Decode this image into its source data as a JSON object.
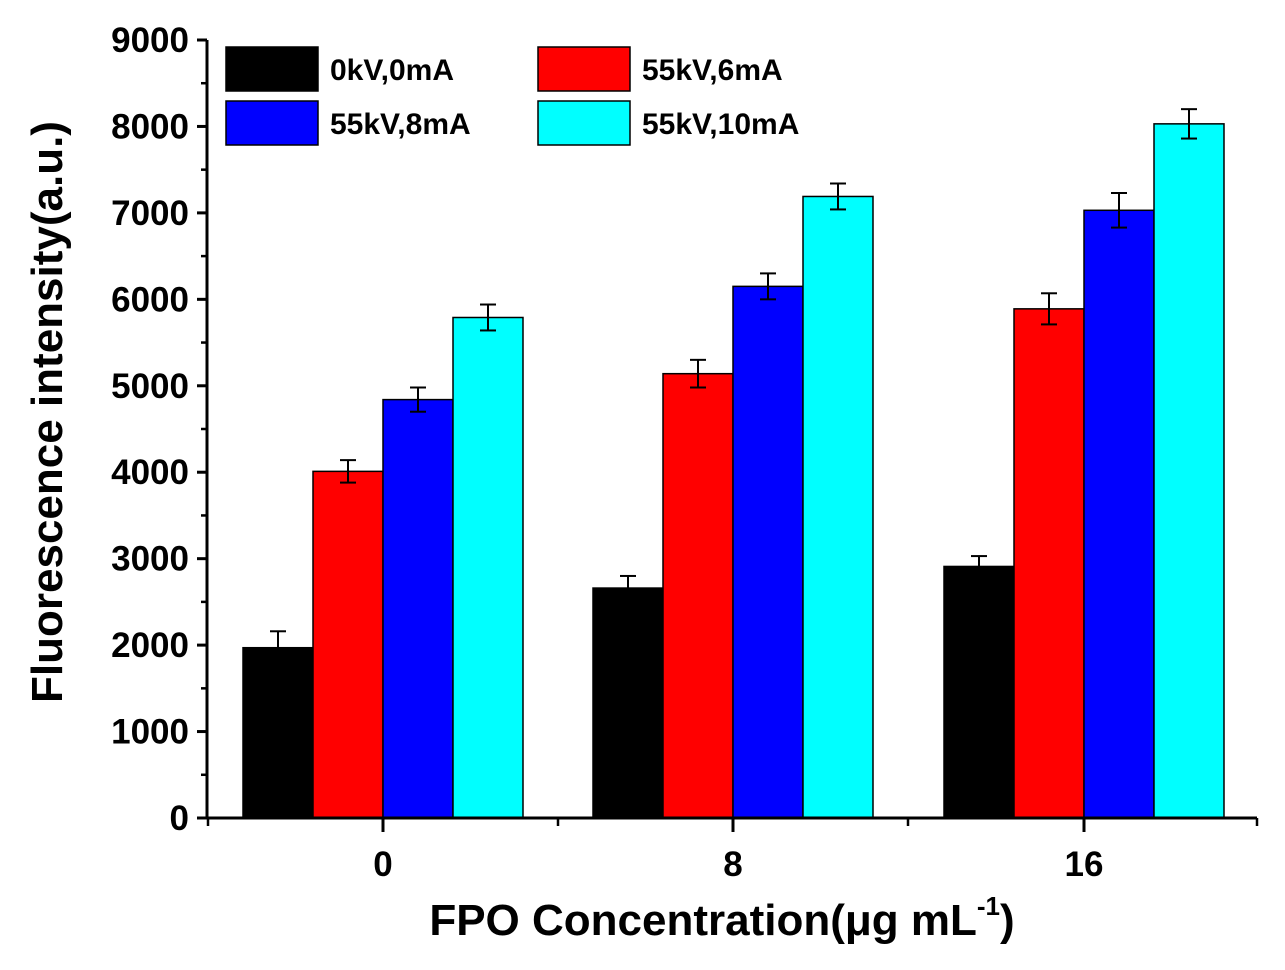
{
  "chart_data": {
    "type": "bar",
    "title": "",
    "xlabel": "FPO Concentration(μg mL",
    "xlabel_superscript": "-1",
    "xlabel_suffix": ")",
    "ylabel": "Fluorescence intensity(a.u.)",
    "ylim": [
      0,
      9000
    ],
    "yticks": [
      0,
      1000,
      2000,
      3000,
      4000,
      5000,
      6000,
      7000,
      8000,
      9000
    ],
    "categories": [
      "0",
      "8",
      "16"
    ],
    "legend_position": "top-left",
    "series": [
      {
        "name": "0kV,0mA",
        "color": "#000000",
        "values": [
          1970,
          2660,
          2910
        ],
        "errors": [
          190,
          140,
          120
        ]
      },
      {
        "name": "55kV,6mA",
        "color": "#ff0000",
        "values": [
          4010,
          5140,
          5890
        ],
        "errors": [
          130,
          160,
          180
        ]
      },
      {
        "name": "55kV,8mA",
        "color": "#0000ff",
        "values": [
          4840,
          6150,
          7030
        ],
        "errors": [
          140,
          150,
          200
        ]
      },
      {
        "name": "55kV,10mA",
        "color": "#00ffff",
        "values": [
          5790,
          7190,
          8030
        ],
        "errors": [
          150,
          150,
          170
        ]
      }
    ]
  }
}
